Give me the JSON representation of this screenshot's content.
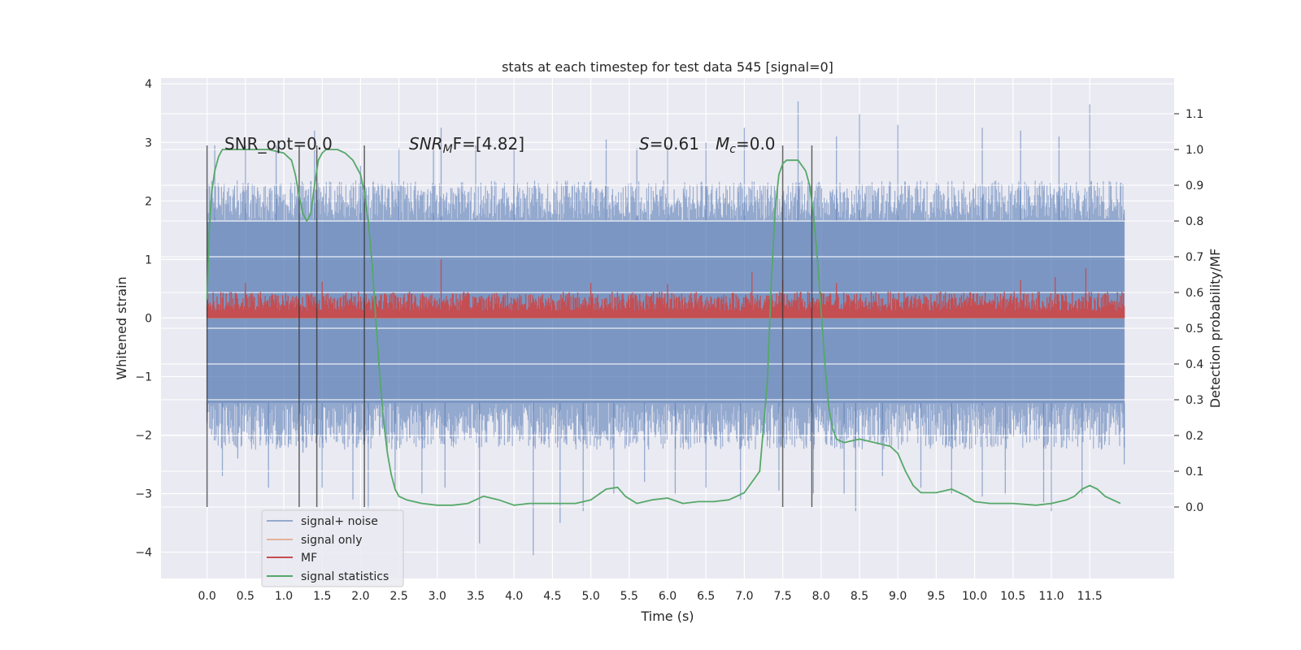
{
  "chart_data": {
    "type": "line",
    "title": "stats at each timestep for test data 545 [signal=0]",
    "xlabel": "Time (s)",
    "ylabel": "Whitened strain",
    "y2label": "Detection probability/MF",
    "xlim": [
      -0.6,
      12.6
    ],
    "ylim": [
      -4.45,
      4.1
    ],
    "y2lim": [
      -0.2,
      1.2
    ],
    "x_ticks": [
      0.0,
      0.5,
      1.0,
      1.5,
      2.0,
      2.5,
      3.0,
      3.5,
      4.0,
      4.5,
      5.0,
      5.5,
      6.0,
      6.5,
      7.0,
      7.5,
      8.0,
      8.5,
      9.0,
      9.5,
      10.0,
      10.5,
      11.0,
      11.5
    ],
    "x_tick_labels": [
      "0.0",
      "0.5",
      "1.0",
      "1.5",
      "2.0",
      "2.5",
      "3.0",
      "3.5",
      "4.0",
      "4.5",
      "5.0",
      "5.5",
      "6.0",
      "6.5",
      "7.0",
      "7.5",
      "8.0",
      "8.5",
      "9.0",
      "9.5",
      "10.0",
      "10.5",
      "11.0",
      "11.5"
    ],
    "y_ticks": [
      -4,
      -3,
      -2,
      -1,
      0,
      1,
      2,
      3,
      4
    ],
    "y_tick_labels": [
      "−4",
      "−3",
      "−2",
      "−1",
      "0",
      "1",
      "2",
      "3",
      "4"
    ],
    "y2_ticks": [
      0.0,
      0.1,
      0.2,
      0.3,
      0.4,
      0.5,
      0.6,
      0.7,
      0.8,
      0.9,
      1.0,
      1.1
    ],
    "y2_tick_labels": [
      "0.0",
      "0.1",
      "0.2",
      "0.3",
      "0.4",
      "0.5",
      "0.6",
      "0.7",
      "0.8",
      "0.9",
      "1.0",
      "1.1"
    ],
    "grid": true,
    "legend_position": "lower-left",
    "annotations": {
      "snr_opt": "SNR_opt=0.0",
      "snr_mf_base": "SNR",
      "snr_mf_sub": "M",
      "snr_mf_rest": "F=[4.82]",
      "s_sym": "S",
      "s_val": "=0.61",
      "mc_sym": "M",
      "mc_sub": "c",
      "mc_val": "=0.0"
    },
    "series": [
      {
        "name": "signal+ noise",
        "color": "#4c72b0",
        "axis": "left",
        "x_range": [
          0.0,
          11.95
        ],
        "band": {
          "core_low": -1.45,
          "core_high": 1.65
        },
        "spikes_up": [
          [
            0.0,
            2.2
          ],
          [
            0.1,
            2.95
          ],
          [
            0.5,
            2.95
          ],
          [
            0.9,
            2.95
          ],
          [
            1.4,
            3.2
          ],
          [
            2.0,
            2.6
          ],
          [
            2.5,
            2.9
          ],
          [
            2.95,
            3.0
          ],
          [
            3.05,
            3.25
          ],
          [
            3.5,
            2.95
          ],
          [
            4.0,
            2.9
          ],
          [
            5.2,
            3.05
          ],
          [
            5.6,
            2.9
          ],
          [
            6.0,
            2.95
          ],
          [
            6.5,
            3.0
          ],
          [
            7.0,
            3.25
          ],
          [
            7.7,
            3.7
          ],
          [
            8.2,
            3.1
          ],
          [
            8.5,
            3.5
          ],
          [
            9.0,
            3.3
          ],
          [
            10.1,
            3.25
          ],
          [
            10.6,
            3.2
          ],
          [
            11.1,
            3.1
          ],
          [
            11.5,
            3.65
          ],
          [
            11.95,
            1.85
          ]
        ],
        "spikes_down": [
          [
            0.0,
            -1.8
          ],
          [
            0.2,
            -2.7
          ],
          [
            0.4,
            -2.4
          ],
          [
            0.8,
            -2.9
          ],
          [
            1.25,
            -2.3
          ],
          [
            1.5,
            -2.9
          ],
          [
            1.9,
            -3.1
          ],
          [
            2.1,
            -3.25
          ],
          [
            2.45,
            -2.95
          ],
          [
            2.8,
            -3.0
          ],
          [
            3.1,
            -2.9
          ],
          [
            3.55,
            -3.85
          ],
          [
            4.25,
            -4.05
          ],
          [
            4.6,
            -3.5
          ],
          [
            4.9,
            -3.3
          ],
          [
            5.3,
            -3.0
          ],
          [
            5.7,
            -2.8
          ],
          [
            6.1,
            -3.0
          ],
          [
            6.5,
            -2.9
          ],
          [
            6.95,
            -3.1
          ],
          [
            7.45,
            -2.95
          ],
          [
            7.9,
            -3.0
          ],
          [
            8.3,
            -3.0
          ],
          [
            8.45,
            -3.3
          ],
          [
            8.8,
            -2.7
          ],
          [
            9.3,
            -2.9
          ],
          [
            9.7,
            -3.0
          ],
          [
            10.1,
            -3.05
          ],
          [
            10.4,
            -3.0
          ],
          [
            10.9,
            -3.15
          ],
          [
            11.0,
            -3.3
          ],
          [
            11.4,
            -3.0
          ],
          [
            11.95,
            -2.5
          ]
        ]
      },
      {
        "name": "signal only",
        "color": "#dd8452",
        "axis": "left",
        "x": [
          0.0,
          11.95
        ],
        "y": [
          0.0,
          0.0
        ]
      },
      {
        "name": "MF",
        "color": "#c44e52",
        "axis": "left",
        "x_range": [
          0.0,
          11.95
        ],
        "baseline": 0.0,
        "typical_high": 0.45,
        "peaks": [
          [
            0.5,
            0.6
          ],
          [
            1.5,
            0.62
          ],
          [
            3.05,
            1.0
          ],
          [
            5.0,
            0.6
          ],
          [
            6.0,
            0.58
          ],
          [
            7.1,
            0.78
          ],
          [
            7.5,
            0.65
          ],
          [
            8.2,
            0.6
          ],
          [
            10.6,
            0.65
          ],
          [
            11.05,
            0.7
          ],
          [
            11.45,
            0.85
          ]
        ]
      },
      {
        "name": "signal statistics",
        "color": "#55a868",
        "axis": "right",
        "x": [
          0.0,
          0.03,
          0.06,
          0.1,
          0.15,
          0.2,
          0.3,
          0.5,
          0.8,
          1.0,
          1.1,
          1.15,
          1.2,
          1.25,
          1.3,
          1.35,
          1.4,
          1.45,
          1.5,
          1.55,
          1.6,
          1.7,
          1.8,
          1.9,
          2.0,
          2.05,
          2.1,
          2.15,
          2.2,
          2.25,
          2.3,
          2.35,
          2.4,
          2.45,
          2.5,
          2.6,
          2.8,
          3.0,
          3.2,
          3.4,
          3.6,
          3.8,
          4.0,
          4.2,
          4.5,
          4.8,
          5.0,
          5.2,
          5.35,
          5.45,
          5.6,
          5.8,
          6.0,
          6.2,
          6.4,
          6.6,
          6.8,
          7.0,
          7.2,
          7.3,
          7.35,
          7.4,
          7.45,
          7.5,
          7.55,
          7.6,
          7.7,
          7.8,
          7.85,
          7.9,
          7.95,
          8.0,
          8.05,
          8.1,
          8.15,
          8.2,
          8.3,
          8.5,
          8.7,
          8.9,
          9.0,
          9.1,
          9.2,
          9.3,
          9.5,
          9.7,
          9.9,
          10.0,
          10.2,
          10.5,
          10.8,
          11.0,
          11.2,
          11.3,
          11.4,
          11.5,
          11.6,
          11.7,
          11.9
        ],
        "y": [
          0.58,
          0.78,
          0.88,
          0.94,
          0.98,
          1.0,
          1.0,
          1.0,
          1.0,
          0.99,
          0.97,
          0.93,
          0.87,
          0.82,
          0.8,
          0.82,
          0.9,
          0.97,
          0.99,
          1.0,
          1.0,
          1.0,
          0.99,
          0.97,
          0.93,
          0.88,
          0.8,
          0.68,
          0.52,
          0.37,
          0.24,
          0.15,
          0.09,
          0.05,
          0.03,
          0.02,
          0.01,
          0.005,
          0.005,
          0.01,
          0.03,
          0.02,
          0.005,
          0.01,
          0.01,
          0.01,
          0.02,
          0.05,
          0.055,
          0.03,
          0.01,
          0.02,
          0.025,
          0.01,
          0.015,
          0.015,
          0.02,
          0.04,
          0.1,
          0.35,
          0.62,
          0.83,
          0.93,
          0.96,
          0.97,
          0.97,
          0.97,
          0.94,
          0.9,
          0.82,
          0.7,
          0.55,
          0.4,
          0.28,
          0.22,
          0.19,
          0.18,
          0.19,
          0.18,
          0.17,
          0.15,
          0.1,
          0.06,
          0.04,
          0.04,
          0.05,
          0.03,
          0.015,
          0.01,
          0.01,
          0.005,
          0.01,
          0.02,
          0.03,
          0.05,
          0.06,
          0.05,
          0.03,
          0.01
        ]
      }
    ],
    "vertical_lines": [
      0.0,
      1.2,
      1.43,
      2.05,
      7.5,
      7.88
    ]
  }
}
